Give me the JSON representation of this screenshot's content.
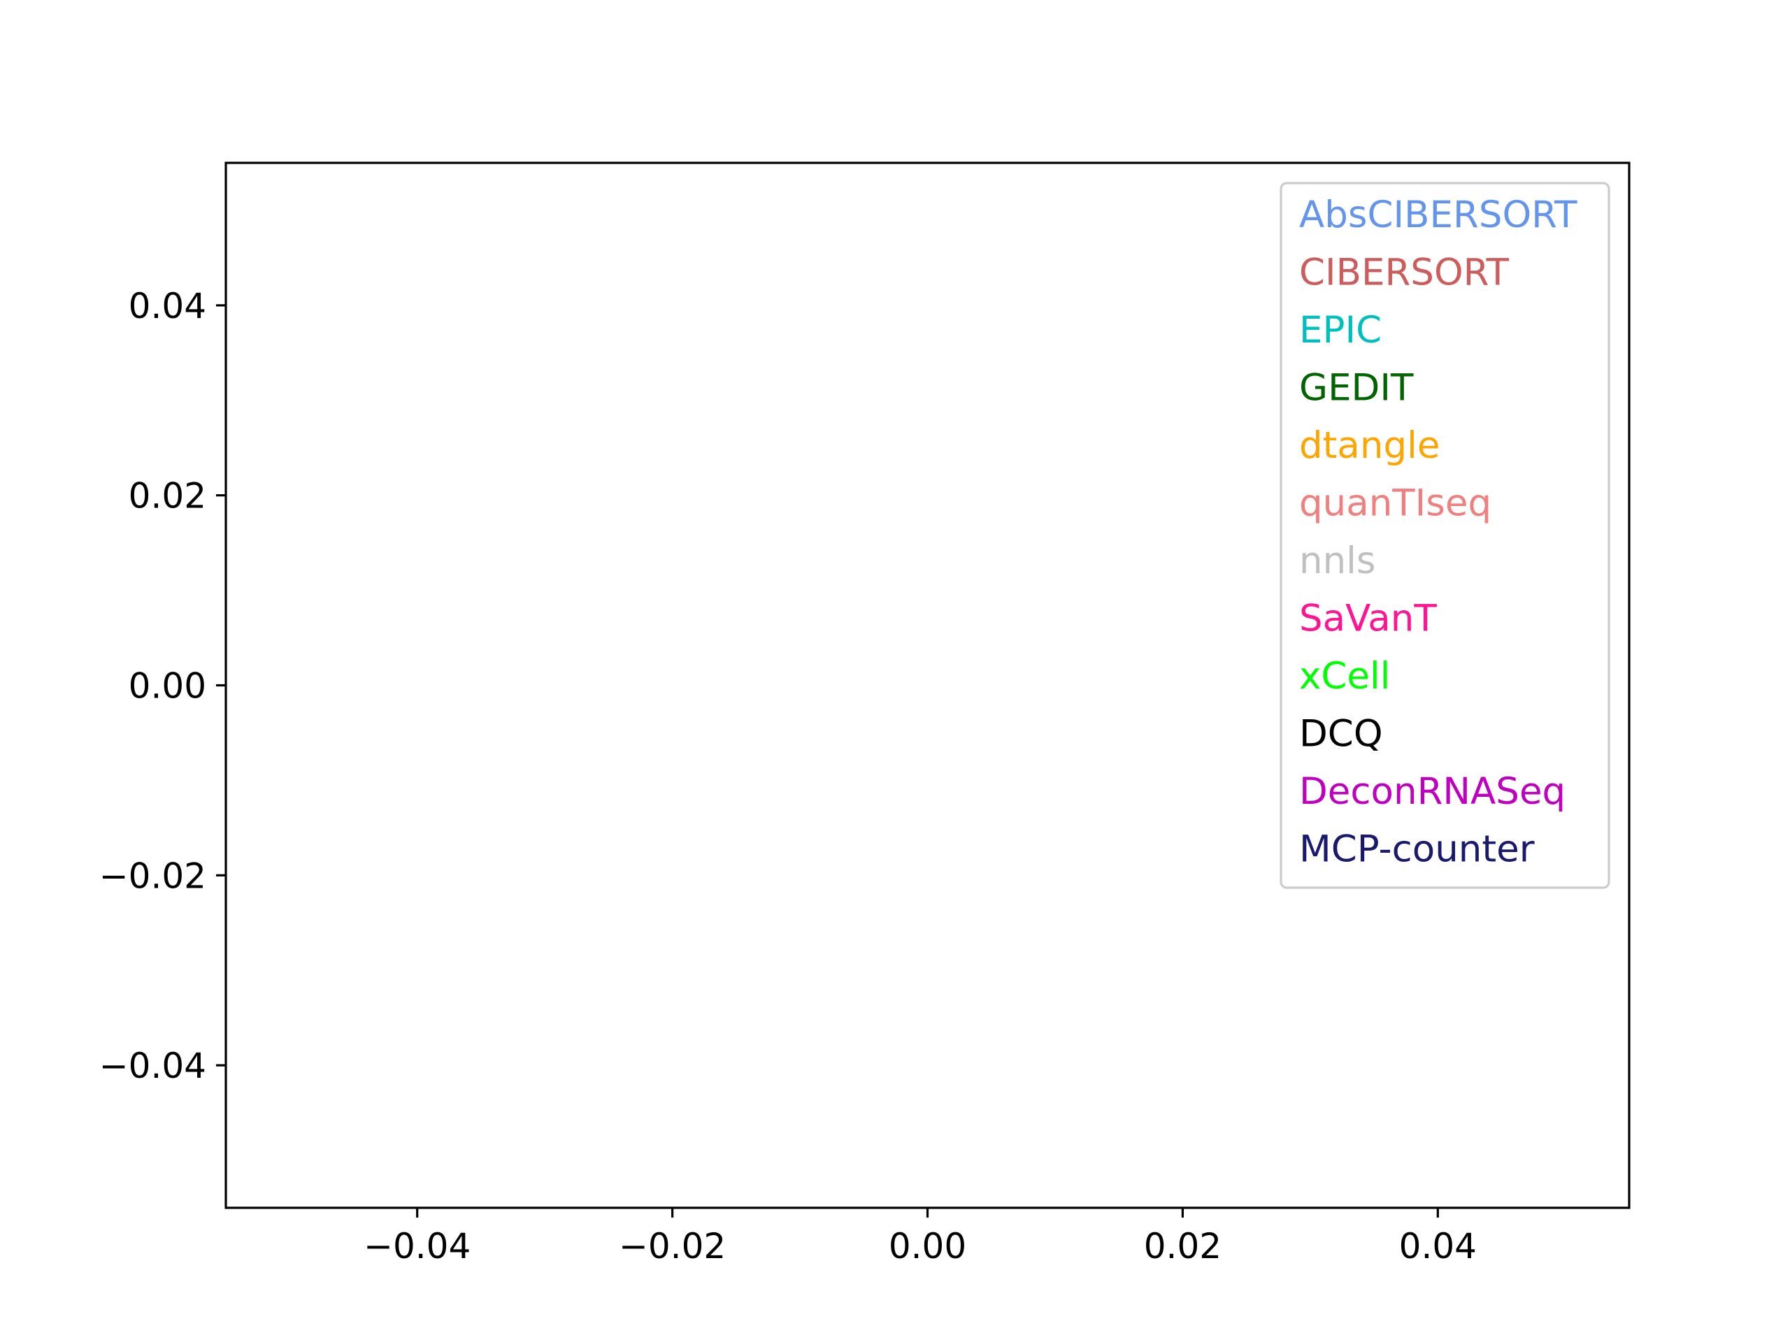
{
  "chart_data": {
    "type": "scatter",
    "title": "",
    "xlabel": "",
    "ylabel": "",
    "xlim": [
      -0.055,
      0.055
    ],
    "ylim": [
      -0.055,
      0.055
    ],
    "x_ticks": [
      -0.04,
      -0.02,
      0.0,
      0.02,
      0.04
    ],
    "x_tick_labels": [
      "−0.04",
      "−0.02",
      "0.00",
      "0.02",
      "0.04"
    ],
    "y_ticks": [
      0.04,
      0.02,
      0.0,
      -0.02,
      -0.04
    ],
    "y_tick_labels": [
      "0.04",
      "0.02",
      "0.00",
      "−0.02",
      "−0.04"
    ],
    "grid": false,
    "legend_position": "top-right",
    "series": [
      {
        "name": "AbsCIBERSORT",
        "color": "#6495ed",
        "x": [],
        "y": []
      },
      {
        "name": "CIBERSORT",
        "color": "#cd5c5c",
        "x": [],
        "y": []
      },
      {
        "name": "EPIC",
        "color": "#00bfbf",
        "x": [],
        "y": []
      },
      {
        "name": "GEDIT",
        "color": "#006400",
        "x": [],
        "y": []
      },
      {
        "name": "dtangle",
        "color": "#ffa500",
        "x": [],
        "y": []
      },
      {
        "name": "quanTIseq",
        "color": "#f08080",
        "x": [],
        "y": []
      },
      {
        "name": "nnls",
        "color": "#c0c0c0",
        "x": [],
        "y": []
      },
      {
        "name": "SaVanT",
        "color": "#ff1493",
        "x": [],
        "y": []
      },
      {
        "name": "xCell",
        "color": "#00ff00",
        "x": [],
        "y": []
      },
      {
        "name": "DCQ",
        "color": "#000000",
        "x": [],
        "y": []
      },
      {
        "name": "DeconRNASeq",
        "color": "#bf00bf",
        "x": [],
        "y": []
      },
      {
        "name": "MCP-counter",
        "color": "#191970",
        "x": [],
        "y": []
      }
    ]
  }
}
